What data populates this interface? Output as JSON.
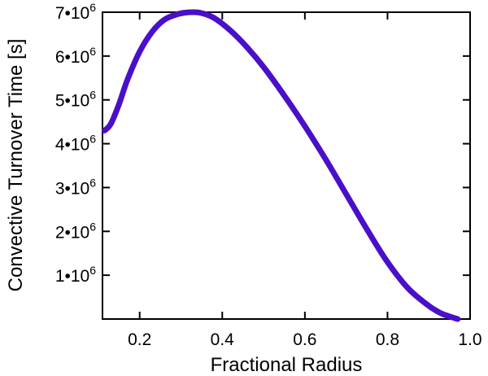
{
  "chart_data": {
    "type": "line",
    "title": "",
    "xlabel": "Fractional Radius",
    "ylabel": "Convective Turnover Time [s]",
    "xlim": [
      0.11,
      1.0
    ],
    "ylim": [
      0,
      7000000
    ],
    "x_ticks": [
      {
        "value": 0.2,
        "label": "0.2"
      },
      {
        "value": 0.4,
        "label": "0.4"
      },
      {
        "value": 0.6,
        "label": "0.6"
      },
      {
        "value": 0.8,
        "label": "0.8"
      },
      {
        "value": 1.0,
        "label": "1.0"
      }
    ],
    "y_ticks": [
      {
        "value": 1000000,
        "mantissa": "1•10",
        "exponent": "6"
      },
      {
        "value": 2000000,
        "mantissa": "2•10",
        "exponent": "6"
      },
      {
        "value": 3000000,
        "mantissa": "3•10",
        "exponent": "6"
      },
      {
        "value": 4000000,
        "mantissa": "4•10",
        "exponent": "6"
      },
      {
        "value": 5000000,
        "mantissa": "5•10",
        "exponent": "6"
      },
      {
        "value": 6000000,
        "mantissa": "6•10",
        "exponent": "6"
      },
      {
        "value": 7000000,
        "mantissa": "7•10",
        "exponent": "6"
      }
    ],
    "grid": false,
    "legend": "none",
    "series": [
      {
        "color": "#4A0FC8",
        "x": [
          0.115,
          0.13,
          0.15,
          0.17,
          0.2,
          0.23,
          0.26,
          0.29,
          0.31,
          0.33,
          0.35,
          0.38,
          0.42,
          0.46,
          0.5,
          0.55,
          0.6,
          0.65,
          0.7,
          0.75,
          0.8,
          0.85,
          0.9,
          0.93,
          0.95,
          0.97
        ],
        "y": [
          4300000,
          4450000,
          4900000,
          5450000,
          6100000,
          6550000,
          6830000,
          6950000,
          6990000,
          7000000,
          6980000,
          6870000,
          6580000,
          6200000,
          5750000,
          5100000,
          4400000,
          3650000,
          2850000,
          2050000,
          1300000,
          700000,
          300000,
          130000,
          60000,
          0
        ]
      }
    ]
  }
}
